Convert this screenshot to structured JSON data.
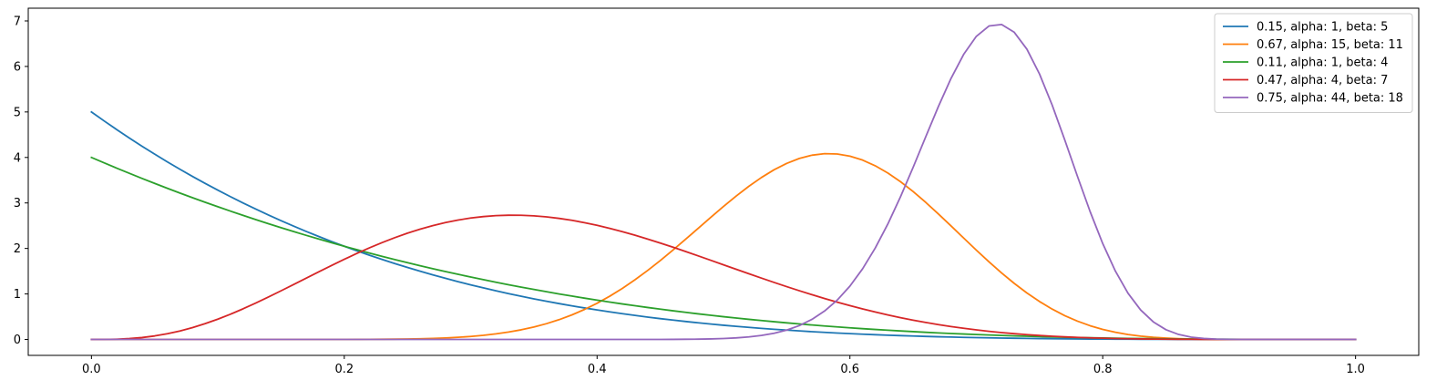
{
  "chart_data": {
    "type": "line",
    "title": "",
    "xlabel": "",
    "ylabel": "",
    "xlim": [
      -0.05,
      1.05
    ],
    "ylim": [
      -0.35,
      7.28
    ],
    "x_ticks": [
      0.0,
      0.2,
      0.4,
      0.6,
      0.8,
      1.0
    ],
    "x_tick_labels": [
      "0.0",
      "0.2",
      "0.4",
      "0.6",
      "0.8",
      "1.0"
    ],
    "y_ticks": [
      0,
      1,
      2,
      3,
      4,
      5,
      6,
      7
    ],
    "y_tick_labels": [
      "0",
      "1",
      "2",
      "3",
      "4",
      "5",
      "6",
      "7"
    ],
    "grid": false,
    "legend_position": "top-right",
    "x_range": {
      "start": 0.0,
      "end": 1.0,
      "points": 101
    },
    "series": [
      {
        "name": "0.15, alpha: 1, beta: 5",
        "distribution": "beta",
        "alpha": 1,
        "beta": 5,
        "color": "#1f77b4"
      },
      {
        "name": "0.67, alpha: 15, beta: 11",
        "distribution": "beta",
        "alpha": 15,
        "beta": 11,
        "color": "#ff7f0e"
      },
      {
        "name": "0.11, alpha: 1, beta: 4",
        "distribution": "beta",
        "alpha": 1,
        "beta": 4,
        "color": "#2ca02c"
      },
      {
        "name": "0.47, alpha: 4, beta: 7",
        "distribution": "beta",
        "alpha": 4,
        "beta": 7,
        "color": "#d62728"
      },
      {
        "name": "0.75, alpha: 44, beta: 18",
        "distribution": "beta",
        "alpha": 44,
        "beta": 18,
        "color": "#9467bd"
      }
    ]
  }
}
